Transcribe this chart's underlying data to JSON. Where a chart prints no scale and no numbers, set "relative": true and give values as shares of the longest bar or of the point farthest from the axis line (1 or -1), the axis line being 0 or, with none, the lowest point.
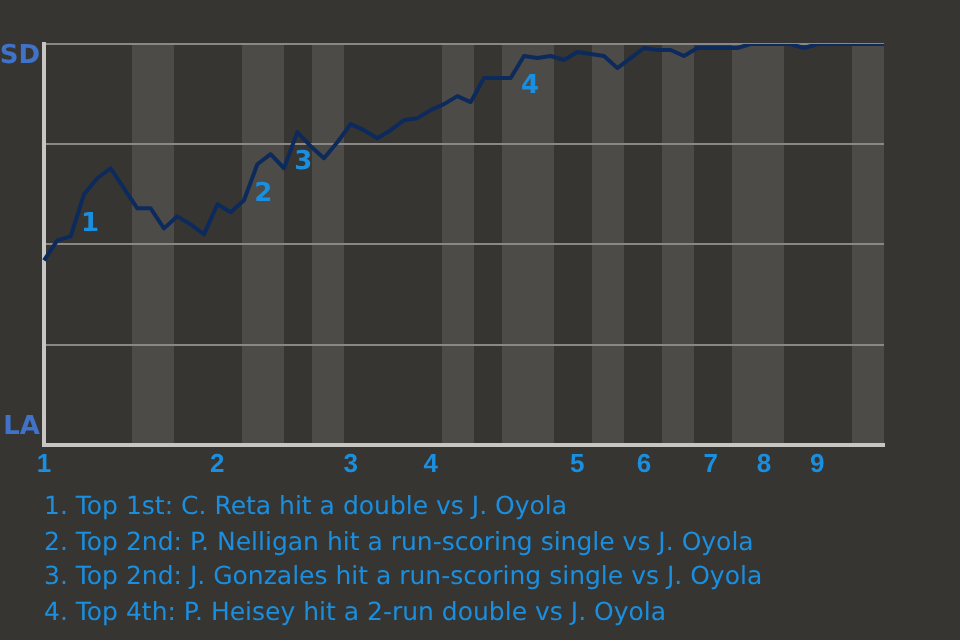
{
  "chart_data": {
    "type": "line",
    "relative": true,
    "categories": [
      "1",
      null,
      null,
      null,
      null,
      null,
      null,
      null,
      null,
      null,
      null,
      null,
      null,
      "2",
      null,
      null,
      null,
      null,
      null,
      null,
      null,
      null,
      null,
      "3",
      null,
      null,
      null,
      null,
      null,
      "4",
      null,
      null,
      null,
      null,
      null,
      null,
      null,
      null,
      null,
      null,
      "5",
      null,
      null,
      null,
      null,
      "6",
      null,
      null,
      null,
      null,
      "7",
      null,
      null,
      null,
      "8",
      null,
      null,
      null,
      "9",
      null,
      null,
      null,
      null,
      null
    ],
    "series": [
      {
        "color": "#0d2a5c",
        "values": [
          0.46,
          0.51,
          0.52,
          0.625,
          0.665,
          0.69,
          0.64,
          0.59,
          0.59,
          0.54,
          0.57,
          0.55,
          0.525,
          0.6,
          0.58,
          0.61,
          0.7,
          0.725,
          0.69,
          0.78,
          0.745,
          0.715,
          0.755,
          0.8,
          0.785,
          0.765,
          0.785,
          0.81,
          0.815,
          0.835,
          0.85,
          0.87,
          0.855,
          0.915,
          0.915,
          0.915,
          0.97,
          0.965,
          0.97,
          0.96,
          0.98,
          0.975,
          0.97,
          0.94,
          0.965,
          0.99,
          0.985,
          0.985,
          0.97,
          0.99,
          0.99,
          0.99,
          0.99,
          1.0,
          1.0,
          1.0,
          1.0,
          0.99,
          1.0,
          1.0,
          1.0,
          1.0,
          1.0,
          1.0
        ]
      }
    ],
    "grid": "y",
    "legend": false,
    "marker": "none",
    "line_style": "solid",
    "annotations": [
      "SD",
      "LA",
      {
        "text": "1",
        "y": 0.625
      },
      {
        "text": "2",
        "y": 0.7
      },
      {
        "text": "3",
        "y": 0.78
      },
      {
        "text": "4",
        "y": 0.97
      },
      "1. Top 1st: C. Reta hit a double vs J. Oyola",
      "2. Top 2nd: P. Nelligan hit a run-scoring single vs J. Oyola",
      "3. Top 2nd: J. Gonzales hit a run-scoring single vs J. Oyola",
      "4. Top 4th: P. Heisey hit a 2-run double vs J. Oyola"
    ]
  }
}
